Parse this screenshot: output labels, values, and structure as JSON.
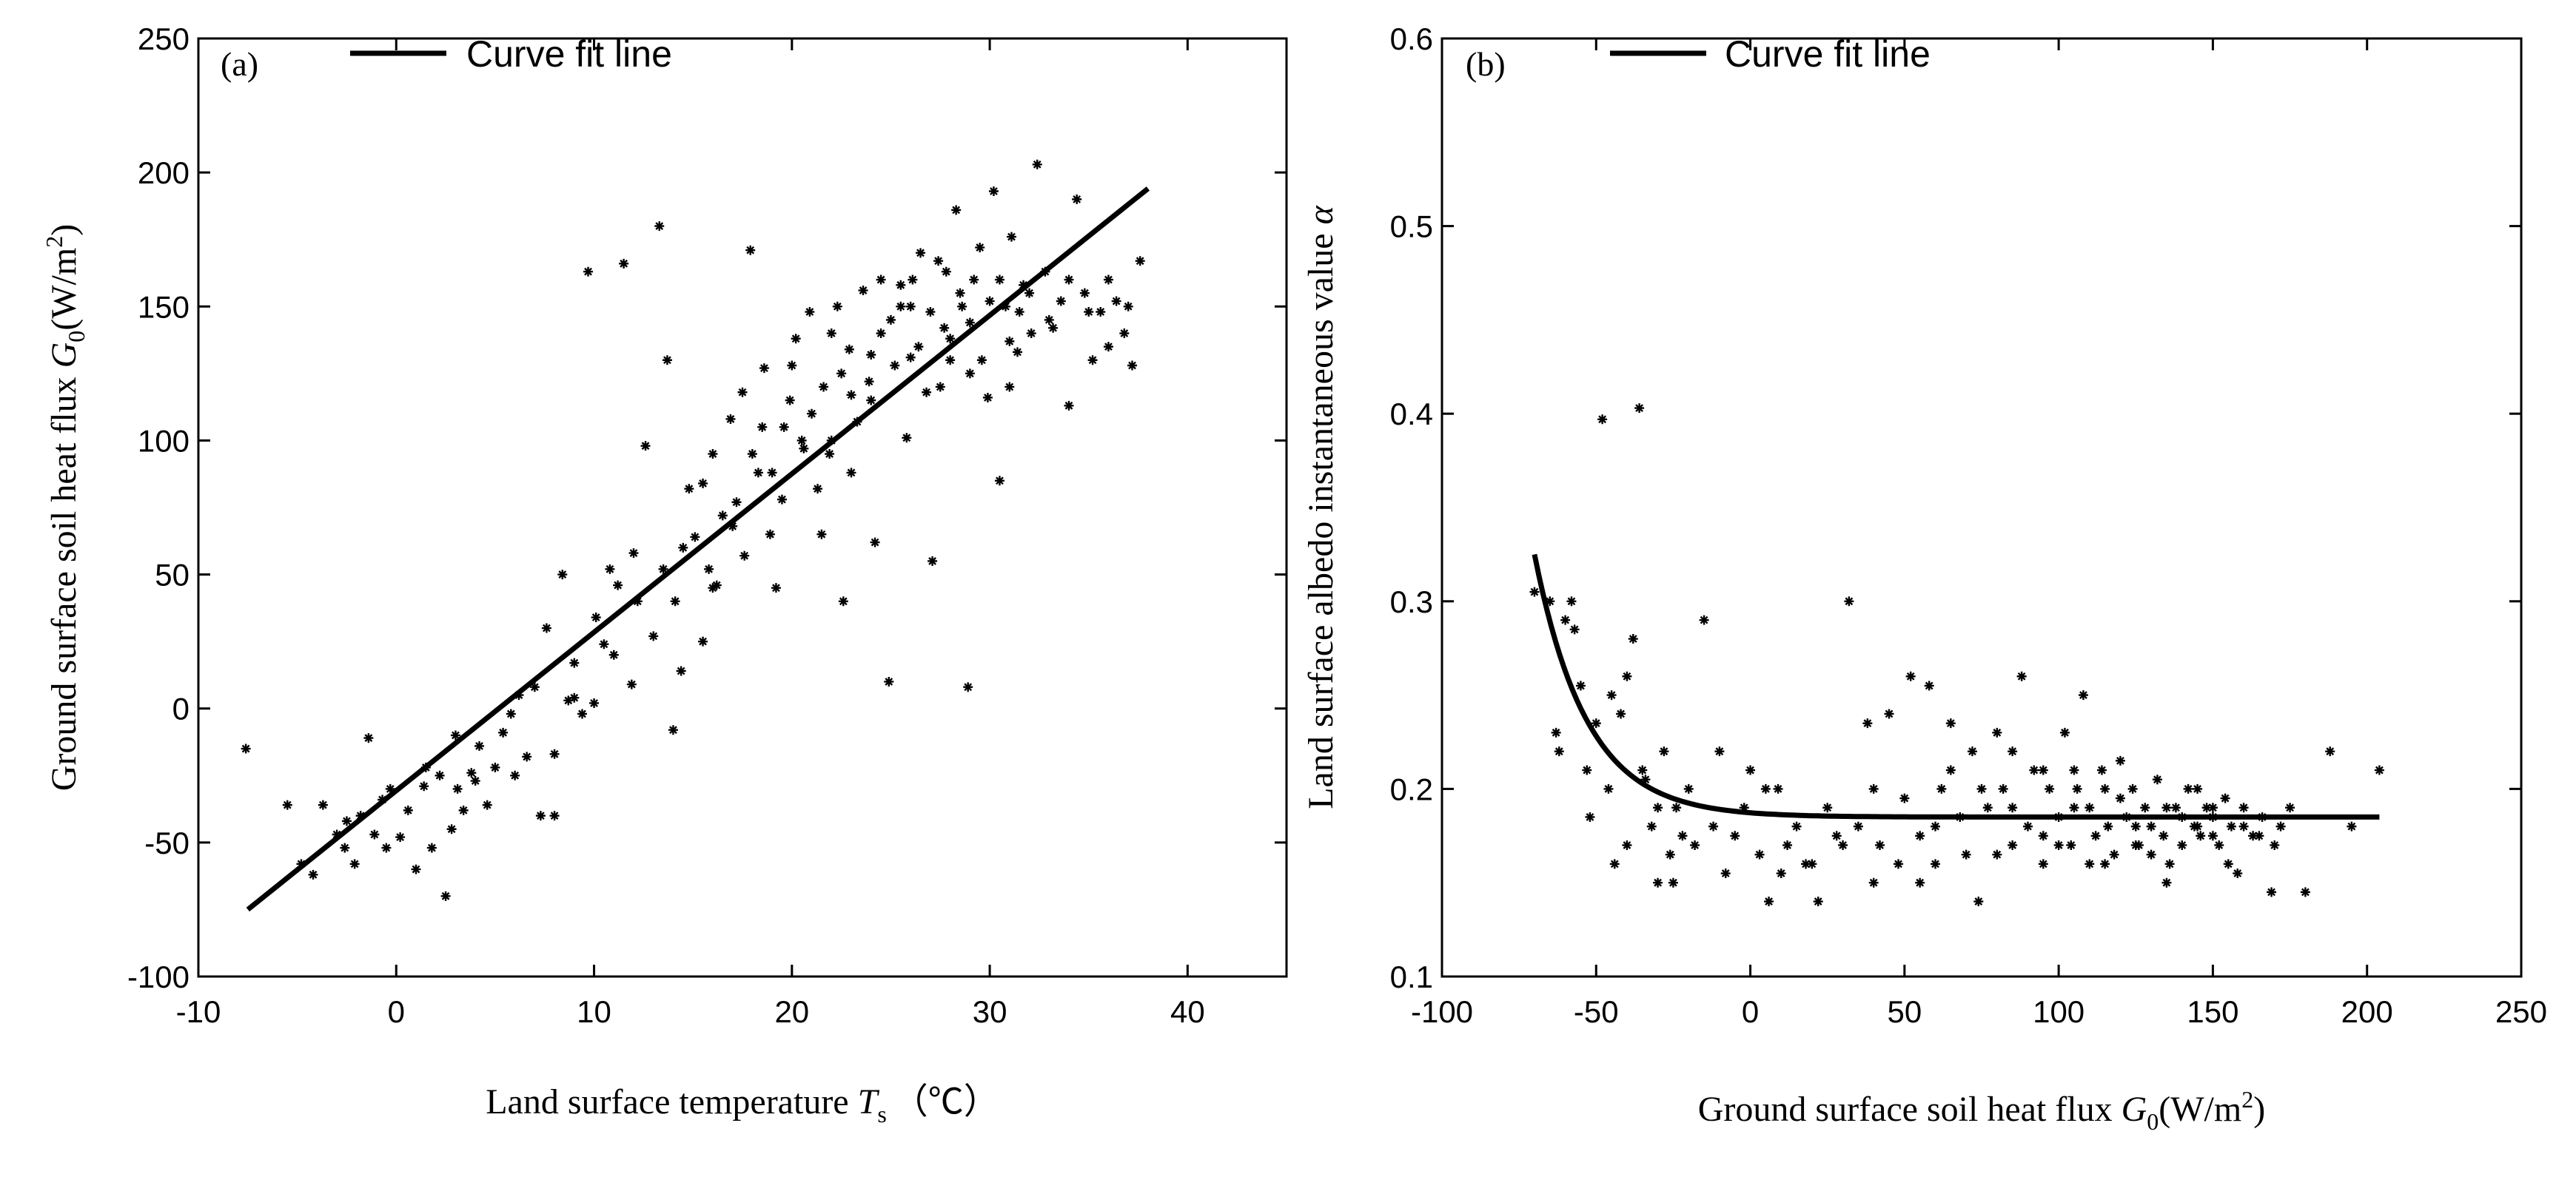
{
  "chart_data": [
    {
      "type": "scatter",
      "panel_label": "(a)",
      "legend": "Curve fit line",
      "xlabel": "Land surface temperature",
      "xlabel_sym": "T",
      "xlabel_sub": "s",
      "xlabel_unit": "（℃）",
      "ylabel": "Ground surface soil heat flux",
      "ylabel_sym": "G",
      "ylabel_sub": "0",
      "ylabel_unit_pre": "(W/m",
      "ylabel_unit_sup": "2",
      "ylabel_unit_post": ")",
      "xlim": [
        -10,
        45
      ],
      "ylim": [
        -100,
        250
      ],
      "xticks": [
        -10,
        0,
        10,
        20,
        30,
        40
      ],
      "yticks": [
        -100,
        -50,
        0,
        50,
        100,
        150,
        200,
        250
      ],
      "xtick_labels": [
        "-10",
        "0",
        "10",
        "20",
        "30",
        "40"
      ],
      "ytick_labels": [
        "-100",
        "-50",
        "0",
        "50",
        "100",
        "150",
        "200",
        "250"
      ],
      "fit_line": {
        "x": [
          -7.5,
          38
        ],
        "y": [
          -75,
          194
        ]
      },
      "points": [
        [
          -7.6,
          -15
        ],
        [
          -5.5,
          -36
        ],
        [
          -4.8,
          -58
        ],
        [
          -4.2,
          -62
        ],
        [
          -3.7,
          -36
        ],
        [
          -3,
          -47
        ],
        [
          -2.6,
          -52
        ],
        [
          -2.1,
          -58
        ],
        [
          -1.8,
          -40
        ],
        [
          -1.4,
          -11
        ],
        [
          -1.1,
          -47
        ],
        [
          -0.7,
          -34
        ],
        [
          -0.3,
          -30
        ],
        [
          0.2,
          -48
        ],
        [
          0.6,
          -38
        ],
        [
          1,
          -60
        ],
        [
          1.4,
          -29
        ],
        [
          1.8,
          -52
        ],
        [
          2.2,
          -25
        ],
        [
          2.5,
          -70
        ],
        [
          2.8,
          -45
        ],
        [
          3.1,
          -30
        ],
        [
          3.4,
          -38
        ],
        [
          3.8,
          -24
        ],
        [
          4.2,
          -14
        ],
        [
          4.6,
          -36
        ],
        [
          5,
          -22
        ],
        [
          5.4,
          -9
        ],
        [
          5.8,
          -2
        ],
        [
          6.2,
          5
        ],
        [
          6.6,
          -18
        ],
        [
          7,
          8
        ],
        [
          7.3,
          -40
        ],
        [
          7.6,
          30
        ],
        [
          8,
          -17
        ],
        [
          8.4,
          50
        ],
        [
          8.7,
          3
        ],
        [
          9,
          17
        ],
        [
          9.4,
          -2
        ],
        [
          9.7,
          163
        ],
        [
          10.1,
          34
        ],
        [
          10.5,
          24
        ],
        [
          10.8,
          52
        ],
        [
          11.2,
          46
        ],
        [
          11.5,
          166
        ],
        [
          11.9,
          9
        ],
        [
          12.2,
          40
        ],
        [
          12.6,
          98
        ],
        [
          13,
          27
        ],
        [
          13.3,
          180
        ],
        [
          13.7,
          130
        ],
        [
          14.1,
          40
        ],
        [
          14.4,
          14
        ],
        [
          14.8,
          82
        ],
        [
          15.1,
          64
        ],
        [
          15.5,
          25
        ],
        [
          15.8,
          52
        ],
        [
          16.2,
          46
        ],
        [
          16.5,
          72
        ],
        [
          16.9,
          108
        ],
        [
          17.2,
          77
        ],
        [
          17.6,
          57
        ],
        [
          17.9,
          171
        ],
        [
          18.3,
          88
        ],
        [
          18.6,
          127
        ],
        [
          18.9,
          65
        ],
        [
          19.2,
          45
        ],
        [
          19.6,
          105
        ],
        [
          19.9,
          115
        ],
        [
          20.2,
          138
        ],
        [
          20.6,
          97
        ],
        [
          20.9,
          148
        ],
        [
          21.3,
          82
        ],
        [
          21.6,
          120
        ],
        [
          21.9,
          95
        ],
        [
          22.3,
          150
        ],
        [
          22.6,
          40
        ],
        [
          22.9,
          134
        ],
        [
          23.3,
          107
        ],
        [
          23.6,
          156
        ],
        [
          23.9,
          122
        ],
        [
          24.2,
          62
        ],
        [
          24.5,
          140
        ],
        [
          24.9,
          10
        ],
        [
          25.2,
          128
        ],
        [
          25.5,
          150
        ],
        [
          25.8,
          101
        ],
        [
          26.1,
          160
        ],
        [
          26.4,
          135
        ],
        [
          26.8,
          118
        ],
        [
          27.1,
          55
        ],
        [
          27.4,
          167
        ],
        [
          27.7,
          142
        ],
        [
          28,
          130
        ],
        [
          28.3,
          186
        ],
        [
          28.6,
          150
        ],
        [
          28.9,
          8
        ],
        [
          29.2,
          160
        ],
        [
          29.6,
          130
        ],
        [
          29.9,
          116
        ],
        [
          30.2,
          193
        ],
        [
          30.5,
          85
        ],
        [
          30.8,
          150
        ],
        [
          31.1,
          176
        ],
        [
          31.4,
          133
        ],
        [
          31.7,
          158
        ],
        [
          32.1,
          140
        ],
        [
          32.4,
          203
        ],
        [
          32.8,
          163
        ],
        [
          33.2,
          142
        ],
        [
          33.6,
          152
        ],
        [
          34,
          113
        ],
        [
          34.4,
          190
        ],
        [
          34.8,
          155
        ],
        [
          35.2,
          130
        ],
        [
          35.6,
          148
        ],
        [
          36,
          160
        ],
        [
          36.4,
          152
        ],
        [
          36.8,
          140
        ],
        [
          37.2,
          128
        ],
        [
          37.6,
          167
        ],
        [
          16,
          45
        ],
        [
          17,
          68
        ],
        [
          19,
          88
        ],
        [
          21,
          110
        ],
        [
          22,
          100
        ],
        [
          23,
          117
        ],
        [
          24,
          132
        ],
        [
          25,
          145
        ],
        [
          26,
          131
        ],
        [
          27,
          148
        ],
        [
          28,
          138
        ],
        [
          29,
          144
        ],
        [
          30,
          152
        ],
        [
          31,
          137
        ],
        [
          12,
          58
        ],
        [
          13.5,
          52
        ],
        [
          14.5,
          60
        ],
        [
          15.5,
          84
        ],
        [
          18,
          95
        ],
        [
          20,
          128
        ],
        [
          22.5,
          125
        ],
        [
          24.5,
          160
        ],
        [
          26.5,
          170
        ],
        [
          28.5,
          155
        ],
        [
          30.5,
          160
        ],
        [
          32,
          155
        ],
        [
          9,
          4
        ],
        [
          6,
          -25
        ],
        [
          4,
          -27
        ],
        [
          3,
          -10
        ],
        [
          1.5,
          -22
        ],
        [
          -0.5,
          -52
        ],
        [
          -2.5,
          -42
        ],
        [
          11,
          20
        ],
        [
          14,
          -8
        ],
        [
          17.5,
          118
        ],
        [
          19.5,
          78
        ],
        [
          21.5,
          65
        ],
        [
          23,
          88
        ],
        [
          25.5,
          158
        ],
        [
          27.5,
          120
        ],
        [
          29.5,
          172
        ],
        [
          31.5,
          148
        ],
        [
          33,
          145
        ],
        [
          35,
          148
        ],
        [
          36,
          135
        ],
        [
          8,
          -40
        ],
        [
          10,
          2
        ],
        [
          16,
          95
        ],
        [
          18.5,
          105
        ],
        [
          20.5,
          100
        ],
        [
          22,
          140
        ],
        [
          24,
          115
        ],
        [
          26,
          150
        ],
        [
          27.8,
          163
        ],
        [
          29,
          125
        ],
        [
          31,
          120
        ],
        [
          34,
          160
        ],
        [
          37,
          150
        ]
      ]
    },
    {
      "type": "scatter",
      "panel_label": "(b)",
      "legend": "Curve fit line",
      "xlabel": "Ground surface soil heat flux",
      "xlabel_sym": "G",
      "xlabel_sub": "0",
      "xlabel_unit_pre": "(W/m",
      "xlabel_unit_sup": "2",
      "xlabel_unit_post": ")",
      "ylabel": "Land surface albedo instantaneous value",
      "ylabel_sym": "α",
      "xlim": [
        -100,
        250
      ],
      "ylim": [
        0.1,
        0.6
      ],
      "xticks": [
        -100,
        -50,
        0,
        50,
        100,
        150,
        200,
        250
      ],
      "yticks": [
        0.1,
        0.2,
        0.3,
        0.4,
        0.5,
        0.6
      ],
      "xtick_labels": [
        "-100",
        "-50",
        "0",
        "50",
        "100",
        "150",
        "200",
        "250"
      ],
      "ytick_labels": [
        "0.1",
        "0.2",
        "0.3",
        "0.4",
        "0.5",
        "0.6"
      ],
      "fit_curve": {
        "model": "exponential decay",
        "x_range": [
          -70,
          204
        ],
        "base": 0.185,
        "amplitude": 0.14,
        "x0": -70,
        "tau": 17
      },
      "points": [
        [
          -70,
          0.305
        ],
        [
          -65,
          0.3
        ],
        [
          -62,
          0.22
        ],
        [
          -60,
          0.29
        ],
        [
          -57,
          0.285
        ],
        [
          -55,
          0.255
        ],
        [
          -52,
          0.185
        ],
        [
          -50,
          0.235
        ],
        [
          -48,
          0.397
        ],
        [
          -46,
          0.2
        ],
        [
          -44,
          0.16
        ],
        [
          -42,
          0.24
        ],
        [
          -40,
          0.17
        ],
        [
          -38,
          0.28
        ],
        [
          -36,
          0.403
        ],
        [
          -34,
          0.205
        ],
        [
          -32,
          0.18
        ],
        [
          -30,
          0.15
        ],
        [
          -28,
          0.22
        ],
        [
          -26,
          0.165
        ],
        [
          -24,
          0.19
        ],
        [
          -22,
          0.175
        ],
        [
          -20,
          0.2
        ],
        [
          -18,
          0.17
        ],
        [
          -15,
          0.29
        ],
        [
          -12,
          0.18
        ],
        [
          -10,
          0.22
        ],
        [
          -8,
          0.155
        ],
        [
          -5,
          0.175
        ],
        [
          -2,
          0.19
        ],
        [
          0,
          0.21
        ],
        [
          3,
          0.165
        ],
        [
          6,
          0.14
        ],
        [
          9,
          0.2
        ],
        [
          12,
          0.17
        ],
        [
          15,
          0.18
        ],
        [
          18,
          0.16
        ],
        [
          22,
          0.14
        ],
        [
          25,
          0.19
        ],
        [
          28,
          0.175
        ],
        [
          32,
          0.3
        ],
        [
          35,
          0.18
        ],
        [
          38,
          0.235
        ],
        [
          40,
          0.2
        ],
        [
          42,
          0.17
        ],
        [
          45,
          0.24
        ],
        [
          48,
          0.16
        ],
        [
          50,
          0.195
        ],
        [
          52,
          0.26
        ],
        [
          55,
          0.175
        ],
        [
          58,
          0.255
        ],
        [
          60,
          0.16
        ],
        [
          62,
          0.2
        ],
        [
          65,
          0.235
        ],
        [
          68,
          0.185
        ],
        [
          70,
          0.165
        ],
        [
          72,
          0.22
        ],
        [
          74,
          0.14
        ],
        [
          77,
          0.19
        ],
        [
          80,
          0.23
        ],
        [
          82,
          0.2
        ],
        [
          85,
          0.17
        ],
        [
          88,
          0.26
        ],
        [
          90,
          0.18
        ],
        [
          92,
          0.21
        ],
        [
          95,
          0.16
        ],
        [
          97,
          0.2
        ],
        [
          100,
          0.185
        ],
        [
          102,
          0.23
        ],
        [
          104,
          0.17
        ],
        [
          106,
          0.2
        ],
        [
          108,
          0.25
        ],
        [
          110,
          0.19
        ],
        [
          112,
          0.175
        ],
        [
          114,
          0.21
        ],
        [
          116,
          0.18
        ],
        [
          118,
          0.165
        ],
        [
          120,
          0.195
        ],
        [
          122,
          0.185
        ],
        [
          124,
          0.2
        ],
        [
          126,
          0.17
        ],
        [
          128,
          0.19
        ],
        [
          130,
          0.18
        ],
        [
          132,
          0.205
        ],
        [
          134,
          0.175
        ],
        [
          136,
          0.16
        ],
        [
          138,
          0.19
        ],
        [
          140,
          0.185
        ],
        [
          142,
          0.2
        ],
        [
          144,
          0.18
        ],
        [
          146,
          0.175
        ],
        [
          148,
          0.19
        ],
        [
          150,
          0.185
        ],
        [
          152,
          0.17
        ],
        [
          154,
          0.195
        ],
        [
          156,
          0.18
        ],
        [
          158,
          0.155
        ],
        [
          160,
          0.19
        ],
        [
          163,
          0.175
        ],
        [
          166,
          0.185
        ],
        [
          169,
          0.145
        ],
        [
          172,
          0.18
        ],
        [
          175,
          0.19
        ],
        [
          180,
          0.145
        ],
        [
          188,
          0.22
        ],
        [
          195,
          0.18
        ],
        [
          204,
          0.21
        ],
        [
          -58,
          0.3
        ],
        [
          -45,
          0.25
        ],
        [
          -35,
          0.21
        ],
        [
          -25,
          0.15
        ],
        [
          5,
          0.2
        ],
        [
          20,
          0.16
        ],
        [
          30,
          0.17
        ],
        [
          55,
          0.15
        ],
        [
          65,
          0.21
        ],
        [
          75,
          0.2
        ],
        [
          85,
          0.22
        ],
        [
          95,
          0.175
        ],
        [
          105,
          0.21
        ],
        [
          115,
          0.16
        ],
        [
          125,
          0.18
        ],
        [
          135,
          0.15
        ],
        [
          145,
          0.2
        ],
        [
          155,
          0.16
        ],
        [
          165,
          0.175
        ],
        [
          -63,
          0.23
        ],
        [
          -53,
          0.21
        ],
        [
          -40,
          0.26
        ],
        [
          -30,
          0.19
        ],
        [
          10,
          0.155
        ],
        [
          40,
          0.15
        ],
        [
          60,
          0.18
        ],
        [
          80,
          0.165
        ],
        [
          100,
          0.17
        ],
        [
          110,
          0.16
        ],
        [
          120,
          0.215
        ],
        [
          130,
          0.165
        ],
        [
          140,
          0.17
        ],
        [
          150,
          0.19
        ],
        [
          160,
          0.18
        ],
        [
          170,
          0.17
        ],
        [
          145,
          0.18
        ],
        [
          150,
          0.175
        ],
        [
          135,
          0.19
        ],
        [
          125,
          0.17
        ],
        [
          115,
          0.2
        ],
        [
          105,
          0.19
        ],
        [
          95,
          0.21
        ],
        [
          85,
          0.19
        ]
      ]
    }
  ]
}
